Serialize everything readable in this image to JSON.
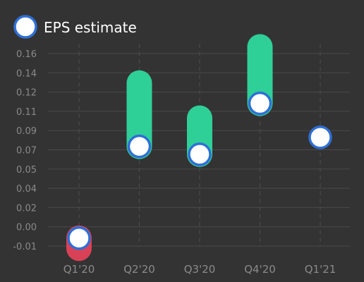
{
  "chart_data": {
    "type": "scatter",
    "categories": [
      "Q1'20",
      "Q2'20",
      "Q3'20",
      "Q4'20",
      "Q1'21"
    ],
    "y_tick_labels": [
      "-0.01",
      "0.00",
      "0.02",
      "0.04",
      "0.05",
      "0.07",
      "0.09",
      "0.11",
      "0.12",
      "0.14",
      "0.16"
    ],
    "ylim": [
      -0.015,
      0.17
    ],
    "grid": {
      "horizontal": true,
      "vertical_dashed": true
    },
    "legend": {
      "position": "top-left"
    },
    "series": [
      {
        "name": "EPS estimate",
        "values": [
          -0.003,
          0.078,
          0.071,
          0.116,
          0.086
        ]
      }
    ],
    "actual_values": [
      -0.012,
      0.134,
      0.103,
      0.166,
      null
    ],
    "colors": {
      "background": "#333333",
      "marker_fill": "#ffffff",
      "marker_stroke": "#2f6fd6",
      "beat": "#2fcf98",
      "miss": "#d94156",
      "grid": "#4a4a4a",
      "tick_text": "#8a8a8a"
    }
  }
}
